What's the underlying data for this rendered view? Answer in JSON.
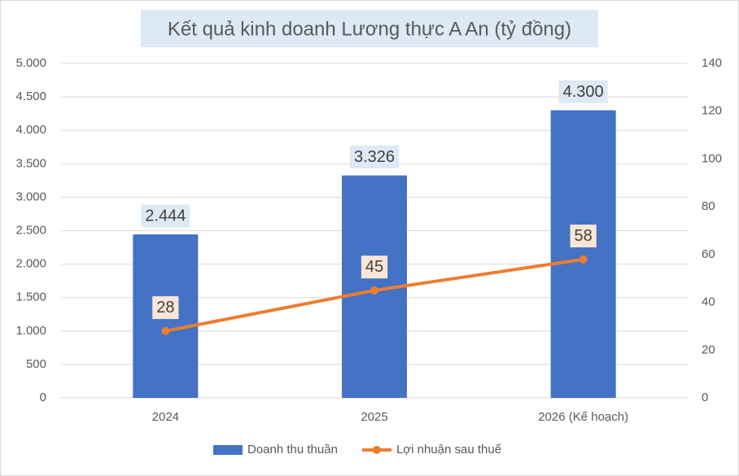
{
  "chart_data": {
    "type": "combo",
    "title": "Kết quả kinh doanh Lương thực A An (tỷ đồng)",
    "categories": [
      "2024",
      "2025",
      "2026 (Kế hoạch)"
    ],
    "series": [
      {
        "name": "Doanh thu thuần",
        "type": "bar",
        "color": "#4472c4",
        "values": [
          2444,
          3326,
          4300
        ],
        "value_labels": [
          "2.444",
          "3.326",
          "4.300"
        ]
      },
      {
        "name": "Lợi nhuận sau thuế",
        "type": "line",
        "axis": "y2",
        "color": "#ed7d31",
        "values": [
          28,
          45,
          58
        ]
      }
    ],
    "ylim": [
      0,
      5000
    ],
    "yticks": [
      0,
      500,
      {
        "value": 1000,
        "label": "1.000"
      },
      {
        "value": 1500,
        "label": "1.500"
      },
      {
        "value": 2000,
        "label": "2.000"
      },
      {
        "value": 2500,
        "label": "2.500"
      },
      {
        "value": 3000,
        "label": "3.000"
      },
      {
        "value": 3500,
        "label": "3.500"
      },
      {
        "value": 4000,
        "label": "4.000"
      },
      {
        "value": 4500,
        "label": "4.500"
      },
      {
        "value": 5000,
        "label": "5.000"
      }
    ],
    "y2lim": [
      0,
      140
    ],
    "y2ticks": [
      0,
      20,
      40,
      60,
      80,
      100,
      120,
      140
    ],
    "grid": true,
    "legend": "bottom"
  }
}
